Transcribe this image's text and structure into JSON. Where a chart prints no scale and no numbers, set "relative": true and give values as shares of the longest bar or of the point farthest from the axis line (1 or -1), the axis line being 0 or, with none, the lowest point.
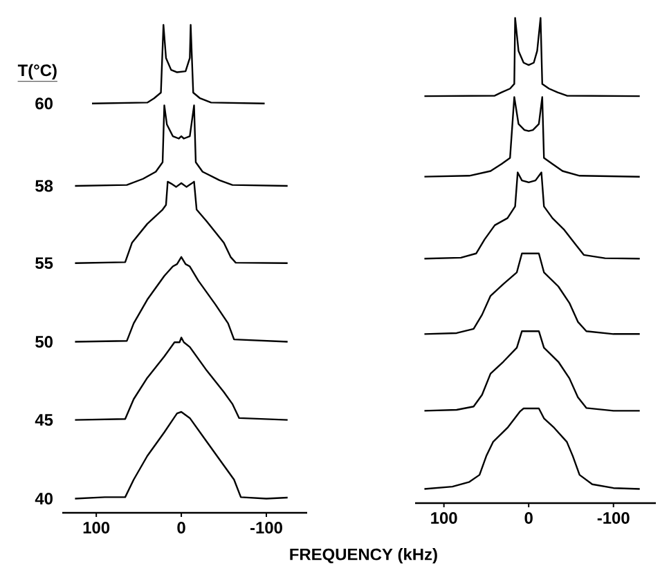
{
  "chart_data": [
    {
      "type": "line",
      "relative": true,
      "legend_title": "T(°C)",
      "xlabel": "FREQUENCY (kHz)",
      "xlim": [
        140,
        -148
      ],
      "xticks": [
        100,
        0,
        -100
      ],
      "series": [
        {
          "name": "60",
          "color": "#000000",
          "x": [
            105,
            40,
            32,
            24,
            21,
            18,
            12,
            5,
            0,
            -5,
            -10,
            -11,
            -14,
            -22,
            -35,
            -98
          ],
          "values": [
            0.834,
            0.836,
            0.845,
            0.857,
            1.0,
            0.93,
            0.905,
            0.9,
            0.901,
            0.902,
            0.93,
            1.0,
            0.857,
            0.845,
            0.836,
            0.834
          ]
        },
        {
          "name": "58",
          "color": "#000000",
          "x": [
            125,
            64,
            45,
            30,
            22,
            20,
            17,
            10,
            3,
            0,
            -3,
            -10,
            -15,
            -17,
            -25,
            -45,
            -60,
            -125
          ],
          "values": [
            0.66,
            0.662,
            0.675,
            0.69,
            0.71,
            0.83,
            0.79,
            0.765,
            0.76,
            0.765,
            0.76,
            0.765,
            0.83,
            0.71,
            0.69,
            0.672,
            0.662,
            0.66
          ]
        },
        {
          "name": "55",
          "color": "#000000",
          "x": [
            125,
            66,
            58,
            40,
            22,
            18,
            16,
            12,
            6,
            0,
            -6,
            -12,
            -15,
            -18,
            -30,
            -50,
            -58,
            -64,
            -125
          ],
          "values": [
            0.497,
            0.499,
            0.54,
            0.58,
            0.61,
            0.62,
            0.669,
            0.665,
            0.658,
            0.666,
            0.658,
            0.665,
            0.669,
            0.61,
            0.585,
            0.54,
            0.51,
            0.498,
            0.497
          ]
        },
        {
          "name": "50",
          "color": "#000000",
          "x": [
            125,
            64,
            56,
            40,
            20,
            10,
            5,
            0,
            -5,
            -10,
            -20,
            -40,
            -55,
            -62,
            -125
          ],
          "values": [
            0.331,
            0.333,
            0.37,
            0.42,
            0.47,
            0.49,
            0.495,
            0.51,
            0.495,
            0.49,
            0.46,
            0.41,
            0.37,
            0.336,
            0.331
          ]
        },
        {
          "name": "45",
          "color": "#000000",
          "x": [
            125,
            66,
            56,
            40,
            20,
            8,
            2,
            0,
            -3,
            -10,
            -30,
            -50,
            -60,
            -68,
            -125
          ],
          "values": [
            0.166,
            0.168,
            0.21,
            0.255,
            0.3,
            0.33,
            0.33,
            0.34,
            0.33,
            0.32,
            0.27,
            0.225,
            0.2,
            0.17,
            0.166
          ]
        },
        {
          "name": "40",
          "color": "#000000",
          "x": [
            125,
            90,
            66,
            56,
            40,
            20,
            5,
            0,
            -10,
            -30,
            -50,
            -62,
            -70,
            -100,
            -125
          ],
          "values": [
            0.0,
            0.003,
            0.003,
            0.04,
            0.09,
            0.14,
            0.18,
            0.183,
            0.17,
            0.12,
            0.07,
            0.04,
            0.003,
            0.0,
            0.002
          ]
        }
      ]
    },
    {
      "type": "line",
      "relative": true,
      "xlim": [
        134,
        -150
      ],
      "xticks": [
        100,
        0,
        -100
      ],
      "series": [
        {
          "color": "#000000",
          "x": [
            123,
            40,
            32,
            22,
            17,
            16,
            12,
            6,
            0,
            -6,
            -10,
            -14,
            -16,
            -24,
            -34,
            -45,
            -131
          ],
          "values": [
            0.834,
            0.835,
            0.842,
            0.85,
            0.86,
            1.0,
            0.93,
            0.905,
            0.9,
            0.905,
            0.93,
            1.0,
            0.86,
            0.85,
            0.842,
            0.835,
            0.834
          ]
        },
        {
          "color": "#000000",
          "x": [
            123,
            70,
            45,
            32,
            22,
            17,
            12,
            5,
            0,
            -5,
            -12,
            -16,
            -18,
            -28,
            -40,
            -60,
            -131
          ],
          "values": [
            0.663,
            0.665,
            0.675,
            0.69,
            0.703,
            0.832,
            0.775,
            0.762,
            0.76,
            0.762,
            0.775,
            0.832,
            0.703,
            0.69,
            0.675,
            0.665,
            0.663
          ]
        },
        {
          "color": "#000000",
          "x": [
            123,
            80,
            62,
            52,
            40,
            25,
            16,
            13,
            8,
            0,
            -8,
            -15,
            -18,
            -28,
            -42,
            -55,
            -65,
            -90,
            -131
          ],
          "values": [
            0.489,
            0.491,
            0.5,
            0.53,
            0.56,
            0.575,
            0.6,
            0.672,
            0.655,
            0.651,
            0.655,
            0.672,
            0.6,
            0.575,
            0.55,
            0.52,
            0.497,
            0.49,
            0.489
          ]
        },
        {
          "color": "#000000",
          "x": [
            123,
            85,
            65,
            55,
            45,
            30,
            14,
            8,
            -12,
            -18,
            -35,
            -48,
            -58,
            -68,
            -100,
            -131
          ],
          "values": [
            0.329,
            0.331,
            0.34,
            0.37,
            0.41,
            0.435,
            0.46,
            0.5,
            0.5,
            0.46,
            0.43,
            0.395,
            0.355,
            0.335,
            0.329,
            0.329
          ]
        },
        {
          "color": "#000000",
          "x": [
            123,
            85,
            65,
            55,
            45,
            30,
            14,
            8,
            -12,
            -18,
            -35,
            -48,
            -58,
            -68,
            -100,
            -131
          ],
          "values": [
            0.166,
            0.168,
            0.175,
            0.2,
            0.245,
            0.27,
            0.3,
            0.335,
            0.335,
            0.3,
            0.27,
            0.235,
            0.195,
            0.172,
            0.166,
            0.166
          ]
        },
        {
          "color": "#000000",
          "x": [
            123,
            90,
            70,
            58,
            50,
            42,
            25,
            10,
            6,
            -12,
            -18,
            -30,
            -45,
            -52,
            -60,
            -75,
            -100,
            -131
          ],
          "values": [
            0.0,
            0.005,
            0.015,
            0.03,
            0.07,
            0.1,
            0.13,
            0.165,
            0.171,
            0.171,
            0.15,
            0.13,
            0.1,
            0.07,
            0.03,
            0.01,
            0.002,
            0.0
          ]
        }
      ]
    }
  ]
}
